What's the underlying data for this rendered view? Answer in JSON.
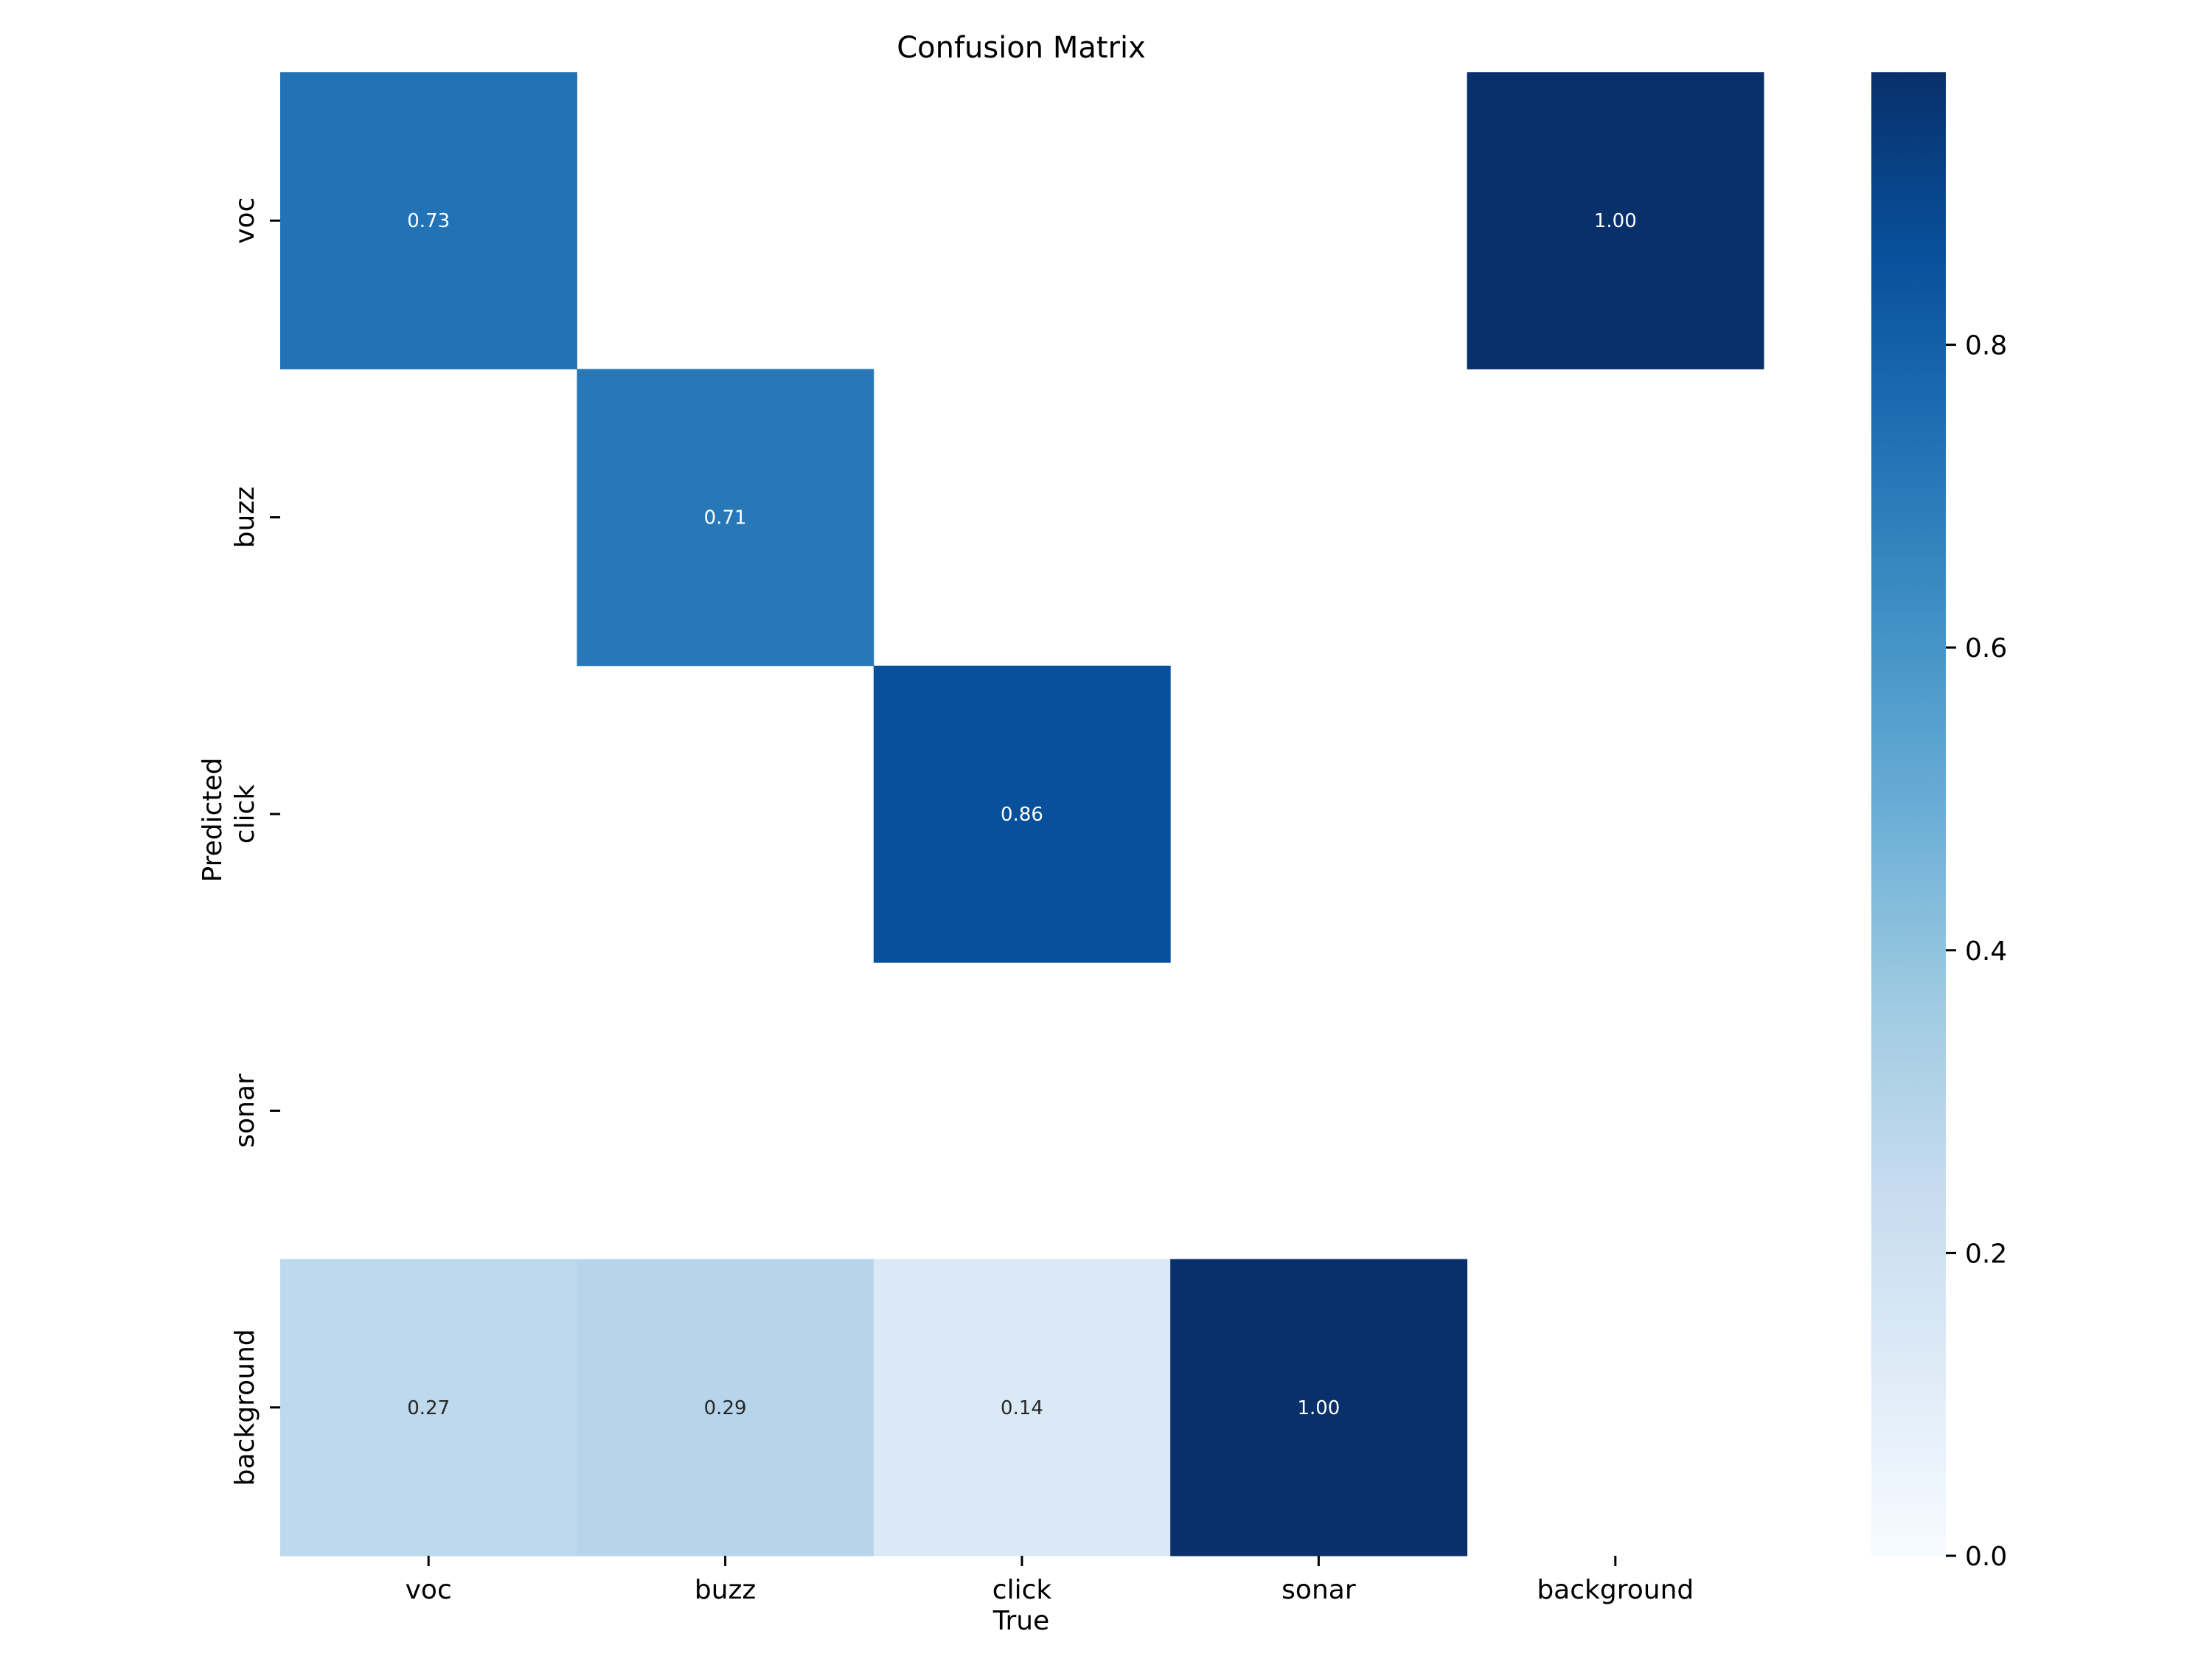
{
  "chart_data": {
    "type": "heatmap",
    "title": "Confusion Matrix",
    "xlabel": "True",
    "ylabel": "Predicted",
    "x_categories": [
      "voc",
      "buzz",
      "click",
      "sonar",
      "background"
    ],
    "y_categories": [
      "voc",
      "buzz",
      "click",
      "sonar",
      "background"
    ],
    "values": [
      [
        0.73,
        null,
        null,
        null,
        1.0
      ],
      [
        null,
        0.71,
        null,
        null,
        null
      ],
      [
        null,
        null,
        0.86,
        null,
        null
      ],
      [
        null,
        null,
        null,
        null,
        null
      ],
      [
        0.27,
        0.29,
        0.14,
        1.0,
        null
      ]
    ],
    "value_labels": [
      [
        "0.73",
        "",
        "",
        "",
        "1.00"
      ],
      [
        "",
        "0.71",
        "",
        "",
        ""
      ],
      [
        "",
        "",
        "0.86",
        "",
        ""
      ],
      [
        "",
        "",
        "",
        "",
        ""
      ],
      [
        "0.27",
        "0.29",
        "0.14",
        "1.00",
        ""
      ]
    ],
    "colormap": "Blues",
    "vmin": 0.0,
    "vmax": 0.98,
    "colorbar_ticks": [
      0.0,
      0.2,
      0.4,
      0.6,
      0.8
    ],
    "colorbar_tick_labels": [
      "0.0",
      "0.2",
      "0.4",
      "0.6",
      "0.8"
    ]
  }
}
